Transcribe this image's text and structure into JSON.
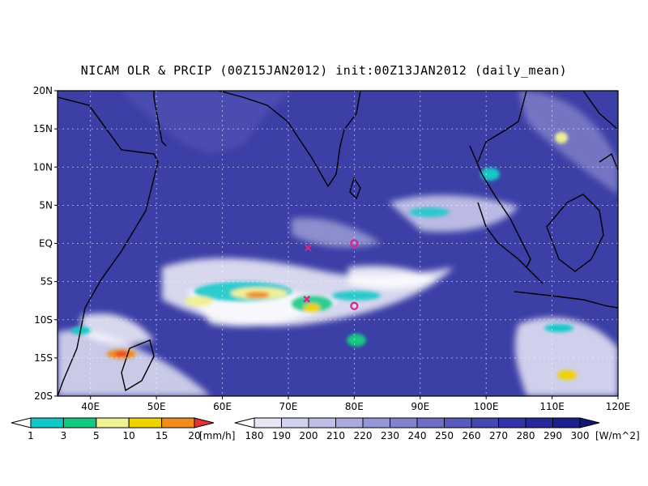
{
  "title": "NICAM OLR & PRCIP (00Z15JAN2012) init:00Z13JAN2012 (daily_mean)",
  "map": {
    "lon_range": [
      35,
      120
    ],
    "lat_range": [
      -20,
      20
    ],
    "lat_ticks": [
      {
        "value": 20,
        "label": "20N"
      },
      {
        "value": 15,
        "label": "15N"
      },
      {
        "value": 10,
        "label": "10N"
      },
      {
        "value": 5,
        "label": "5N"
      },
      {
        "value": 0,
        "label": "EQ"
      },
      {
        "value": -5,
        "label": "5S"
      },
      {
        "value": -10,
        "label": "10S"
      },
      {
        "value": -15,
        "label": "15S"
      },
      {
        "value": -20,
        "label": "20S"
      }
    ],
    "lon_ticks": [
      {
        "value": 40,
        "label": "40E"
      },
      {
        "value": 50,
        "label": "50E"
      },
      {
        "value": 60,
        "label": "60E"
      },
      {
        "value": 70,
        "label": "70E"
      },
      {
        "value": 80,
        "label": "80E"
      },
      {
        "value": 90,
        "label": "90E"
      },
      {
        "value": 100,
        "label": "100E"
      },
      {
        "value": 110,
        "label": "110E"
      },
      {
        "value": 120,
        "label": "120E"
      }
    ],
    "gridlines": true,
    "background_color": "#3c3fa6",
    "markers": [
      {
        "type": "x",
        "lon": 73,
        "lat": -0.6,
        "color": "#e0208a"
      },
      {
        "type": "x",
        "lon": 72.8,
        "lat": -7.3,
        "color": "#e0208a"
      },
      {
        "type": "circle",
        "lon": 80,
        "lat": 0,
        "color": "#e0208a"
      },
      {
        "type": "circle",
        "lon": 80,
        "lat": -8.2,
        "color": "#e0208a"
      }
    ]
  },
  "precip_legend": {
    "unit": "[mm/h]",
    "labels": [
      "1",
      "3",
      "5",
      "10",
      "15",
      "20"
    ],
    "colors": [
      "#ffffff",
      "#14c8c8",
      "#14c882",
      "#f0f096",
      "#f0d200",
      "#f08c1e",
      "#e63232"
    ]
  },
  "olr_legend": {
    "unit": "[W/m^2]",
    "labels": [
      "180",
      "190",
      "200",
      "210",
      "220",
      "230",
      "240",
      "250",
      "260",
      "270",
      "280",
      "290",
      "300"
    ],
    "colors": [
      "#ffffff",
      "#e6e6f5",
      "#d2d2ee",
      "#bebee6",
      "#aaaade",
      "#9696d6",
      "#8282cc",
      "#6e6ec4",
      "#5a5aba",
      "#4646b0",
      "#3232a6",
      "#28289a",
      "#1e1e8c",
      "#141478"
    ]
  }
}
